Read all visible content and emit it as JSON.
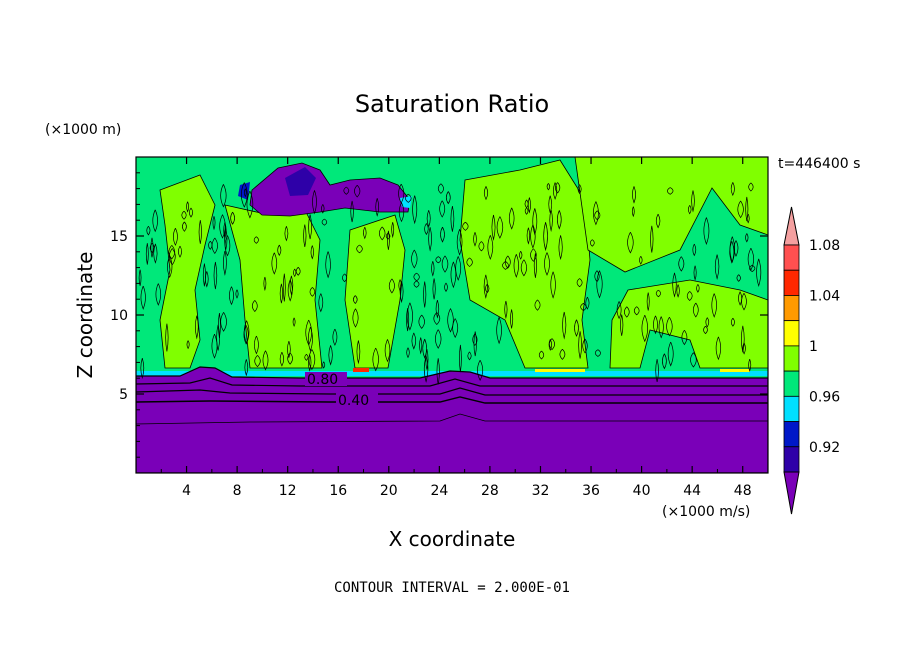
{
  "chart_data": {
    "type": "contour",
    "title": "Saturation Ratio",
    "xlabel": "X coordinate",
    "ylabel": "Z coordinate",
    "x_units": "(×1000 m/s)",
    "y_units": "(×1000 m)",
    "time_label": "t=446400 s",
    "contour_interval_label": "CONTOUR INTERVAL = 2.000E-01",
    "xlim": [
      0,
      50
    ],
    "ylim": [
      0,
      20
    ],
    "x_ticks": [
      4,
      8,
      12,
      16,
      20,
      24,
      28,
      32,
      36,
      40,
      44,
      48
    ],
    "y_ticks": [
      5,
      10,
      15
    ],
    "colorbar": {
      "levels": [
        0.92,
        0.94,
        0.96,
        0.98,
        1.0,
        1.02,
        1.04,
        1.06,
        1.08,
        1.1
      ],
      "labels": [
        "0.92",
        "0.96",
        "1",
        "1.04",
        "1.08"
      ],
      "colors": [
        "#7a00b8",
        "#2e00a8",
        "#0018c8",
        "#00e0ff",
        "#00e87a",
        "#80ff00",
        "#ffff00",
        "#ff9a00",
        "#ff2800",
        "#ff5050",
        "#f4a0a0"
      ]
    },
    "contour_labels": [
      {
        "text": "0.80",
        "x": 17.2,
        "y": 5.9
      },
      {
        "text": "0.40",
        "x": 17.2,
        "y": 4.6
      }
    ],
    "features": {
      "dry_layer_top_km": 6.2,
      "moist_band_km": [
        6.2,
        20
      ],
      "dry_patch": {
        "x": [
          9.5,
          21
        ],
        "y": [
          16.6,
          19.0
        ]
      }
    }
  }
}
